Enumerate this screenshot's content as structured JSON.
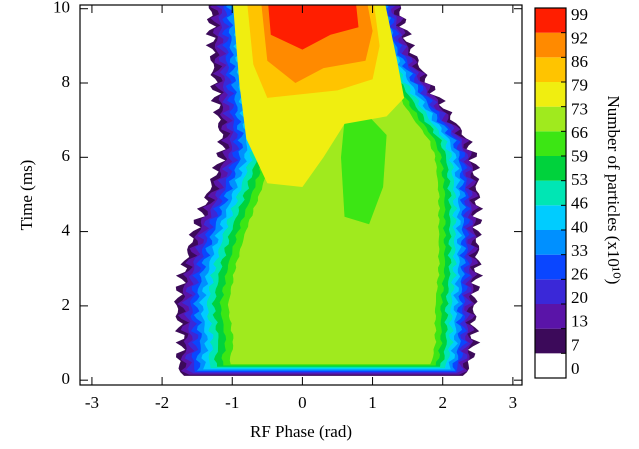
{
  "chart_data": {
    "type": "contour",
    "xlabel": "RF Phase (rad)",
    "ylabel": "Time (ms)",
    "xlim": [
      -3.17,
      3.13
    ],
    "xticks": [
      -3,
      -2,
      -1,
      0,
      1,
      2,
      3
    ],
    "ylim": [
      -0.13,
      10.1
    ],
    "yticks": [
      0,
      2,
      4,
      6,
      8,
      10
    ],
    "colorbar": {
      "label": "Number of particles (x10¹⁰)",
      "levels": [
        0,
        7,
        13,
        20,
        26,
        33,
        40,
        46,
        53,
        59,
        66,
        73,
        79,
        86,
        92,
        99
      ],
      "colors": [
        "#ffffff",
        "#3c0a5a",
        "#5a14a8",
        "#3a28d8",
        "#0a46ff",
        "#0090ff",
        "#00ccff",
        "#00e6b4",
        "#00d23c",
        "#3ce614",
        "#a0ea1e",
        "#f0ee10",
        "#ffc400",
        "#ff8a00",
        "#ff1e00"
      ]
    }
  }
}
